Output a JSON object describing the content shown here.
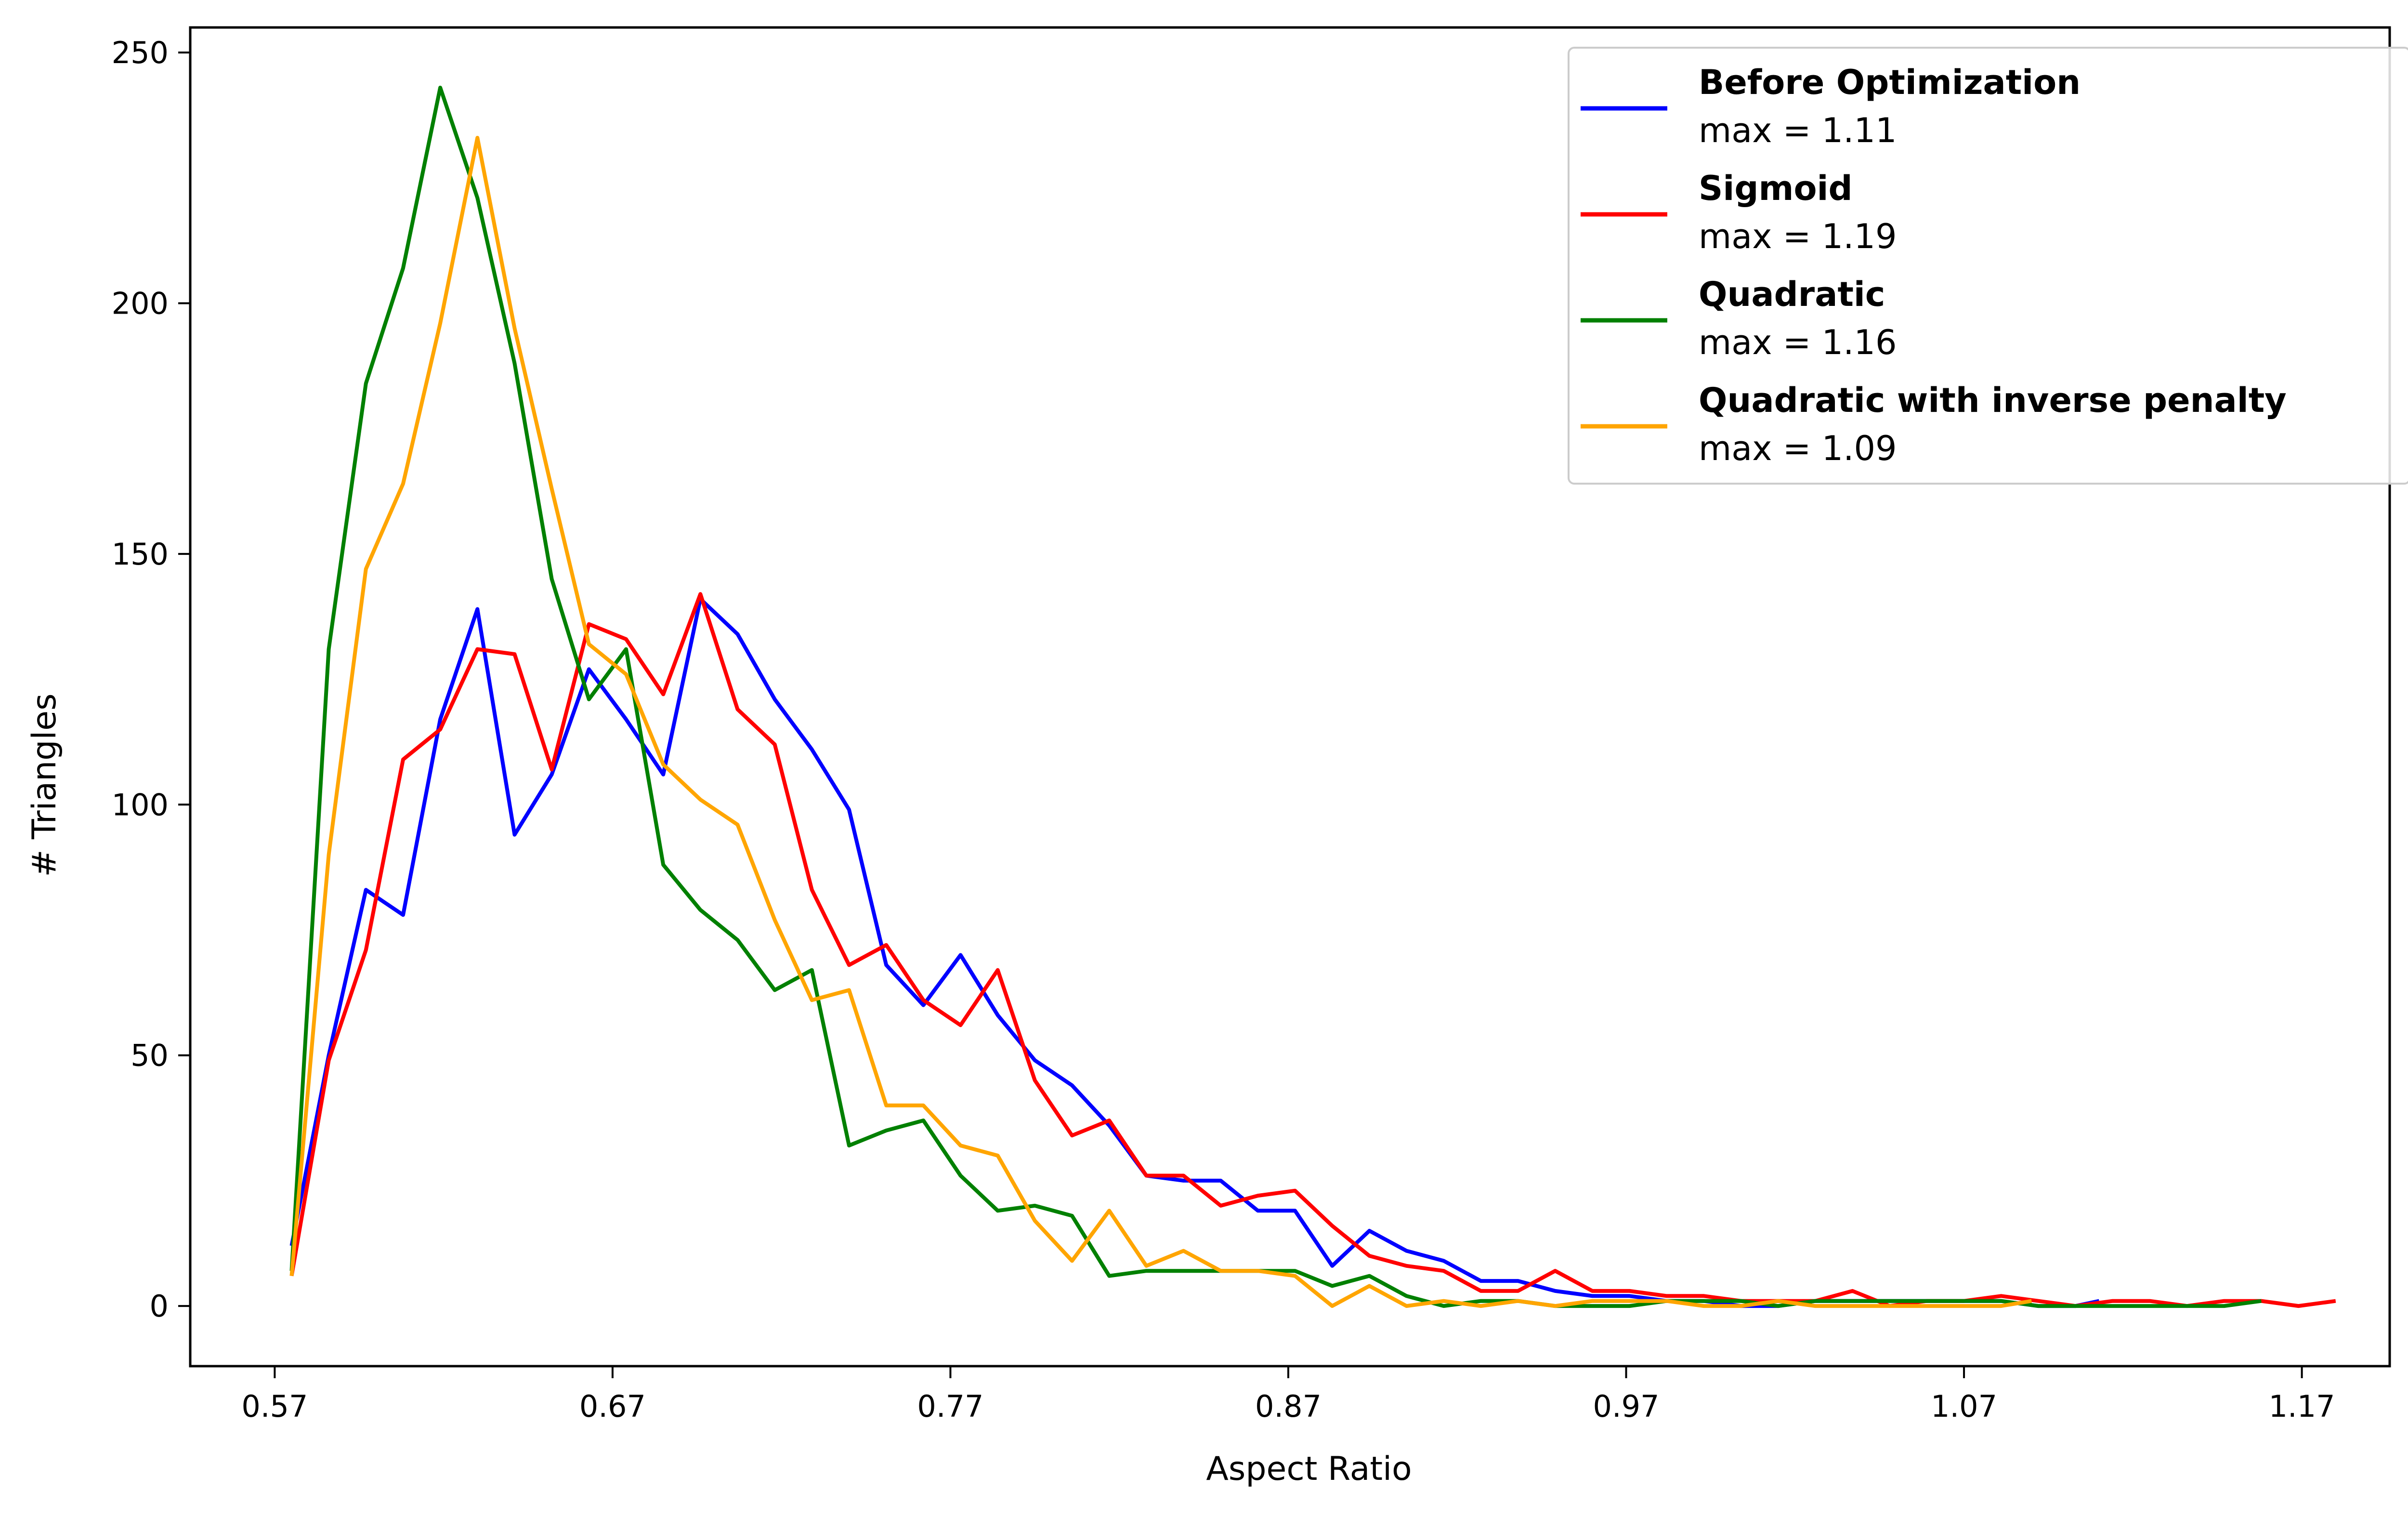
{
  "chart_data": {
    "type": "line",
    "title": "",
    "xlabel": "Aspect Ratio",
    "ylabel": "# Triangles",
    "xlim": [
      0.545,
      1.196
    ],
    "ylim": [
      -12,
      255
    ],
    "xticks": [
      0.57,
      0.67,
      0.77,
      0.87,
      0.97,
      1.07,
      1.17
    ],
    "xtick_labels": [
      "0.57",
      "0.67",
      "0.77",
      "0.87",
      "0.97",
      "1.07",
      "1.17"
    ],
    "yticks": [
      0,
      50,
      100,
      150,
      200,
      250
    ],
    "ytick_labels": [
      "0",
      "50",
      "100",
      "150",
      "200",
      "250"
    ],
    "grid": false,
    "legend_position": "top-right",
    "series": [
      {
        "name": "Before Optimization",
        "subtitle": "max = 1.11",
        "color": "#0000ff",
        "x": [
          0.575,
          0.586,
          0.597,
          0.608,
          0.619,
          0.63,
          0.641,
          0.652,
          0.663,
          0.674,
          0.685,
          0.696,
          0.707,
          0.718,
          0.729,
          0.74,
          0.751,
          0.762,
          0.773,
          0.784,
          0.795,
          0.806,
          0.817,
          0.828,
          0.839,
          0.85,
          0.861,
          0.872,
          0.883,
          0.894,
          0.905,
          0.916,
          0.927,
          0.938,
          0.949,
          0.96,
          0.971,
          0.982,
          0.993,
          1.004,
          1.015,
          1.026,
          1.037,
          1.048,
          1.059,
          1.07,
          1.081,
          1.092,
          1.103,
          1.11
        ],
        "y": [
          12,
          50,
          83,
          78,
          117,
          139,
          94,
          106,
          127,
          117,
          106,
          141,
          134,
          121,
          111,
          99,
          68,
          60,
          70,
          58,
          49,
          44,
          36,
          26,
          25,
          25,
          19,
          19,
          8,
          15,
          11,
          9,
          5,
          5,
          3,
          2,
          2,
          1,
          1,
          0,
          0,
          1,
          1,
          1,
          1,
          1,
          1,
          0,
          0,
          1
        ]
      },
      {
        "name": "Sigmoid",
        "subtitle": "max = 1.19",
        "color": "#ff0000",
        "x": [
          0.575,
          0.586,
          0.597,
          0.608,
          0.619,
          0.63,
          0.641,
          0.652,
          0.663,
          0.674,
          0.685,
          0.696,
          0.707,
          0.718,
          0.729,
          0.74,
          0.751,
          0.762,
          0.773,
          0.784,
          0.795,
          0.806,
          0.817,
          0.828,
          0.839,
          0.85,
          0.861,
          0.872,
          0.883,
          0.894,
          0.905,
          0.916,
          0.927,
          0.938,
          0.949,
          0.96,
          0.971,
          0.982,
          0.993,
          1.004,
          1.015,
          1.026,
          1.037,
          1.048,
          1.059,
          1.07,
          1.081,
          1.092,
          1.103,
          1.114,
          1.125,
          1.136,
          1.147,
          1.158,
          1.169,
          1.18
        ],
        "y": [
          6,
          49,
          71,
          109,
          115,
          131,
          130,
          107,
          136,
          133,
          122,
          142,
          119,
          112,
          83,
          68,
          72,
          61,
          56,
          67,
          45,
          34,
          37,
          26,
          26,
          20,
          22,
          23,
          16,
          10,
          8,
          7,
          3,
          3,
          7,
          3,
          3,
          2,
          2,
          1,
          1,
          1,
          3,
          0,
          1,
          1,
          2,
          1,
          0,
          1,
          1,
          0,
          1,
          1,
          0,
          1
        ]
      },
      {
        "name": "Quadratic",
        "subtitle": "max = 1.16",
        "color": "#008000",
        "x": [
          0.575,
          0.586,
          0.597,
          0.608,
          0.619,
          0.63,
          0.641,
          0.652,
          0.663,
          0.674,
          0.685,
          0.696,
          0.707,
          0.718,
          0.729,
          0.74,
          0.751,
          0.762,
          0.773,
          0.784,
          0.795,
          0.806,
          0.817,
          0.828,
          0.839,
          0.85,
          0.861,
          0.872,
          0.883,
          0.894,
          0.905,
          0.916,
          0.927,
          0.938,
          0.949,
          0.96,
          0.971,
          0.982,
          0.993,
          1.004,
          1.015,
          1.026,
          1.037,
          1.048,
          1.059,
          1.07,
          1.081,
          1.092,
          1.103,
          1.114,
          1.125,
          1.136,
          1.147,
          1.158
        ],
        "y": [
          7,
          131,
          184,
          207,
          243,
          221,
          188,
          145,
          121,
          131,
          88,
          79,
          73,
          63,
          67,
          32,
          35,
          37,
          26,
          19,
          20,
          18,
          6,
          7,
          7,
          7,
          7,
          7,
          4,
          6,
          2,
          0,
          1,
          1,
          0,
          0,
          0,
          1,
          1,
          1,
          0,
          1,
          1,
          1,
          1,
          1,
          1,
          0,
          0,
          0,
          0,
          0,
          0,
          1
        ]
      },
      {
        "name": "Quadratic with inverse penalty",
        "subtitle": "max = 1.09",
        "color": "#ffa500",
        "x": [
          0.575,
          0.586,
          0.597,
          0.608,
          0.619,
          0.63,
          0.641,
          0.652,
          0.663,
          0.674,
          0.685,
          0.696,
          0.707,
          0.718,
          0.729,
          0.74,
          0.751,
          0.762,
          0.773,
          0.784,
          0.795,
          0.806,
          0.817,
          0.828,
          0.839,
          0.85,
          0.861,
          0.872,
          0.883,
          0.894,
          0.905,
          0.916,
          0.927,
          0.938,
          0.949,
          0.96,
          0.971,
          0.982,
          0.993,
          1.004,
          1.015,
          1.026,
          1.037,
          1.048,
          1.059,
          1.07,
          1.081,
          1.09
        ],
        "y": [
          6,
          90,
          147,
          164,
          196,
          233,
          195,
          163,
          132,
          126,
          108,
          101,
          96,
          77,
          61,
          63,
          40,
          40,
          32,
          30,
          17,
          9,
          19,
          8,
          11,
          7,
          7,
          6,
          0,
          4,
          0,
          1,
          0,
          1,
          0,
          1,
          1,
          1,
          0,
          0,
          1,
          0,
          0,
          0,
          0,
          0,
          0,
          1
        ]
      }
    ]
  }
}
